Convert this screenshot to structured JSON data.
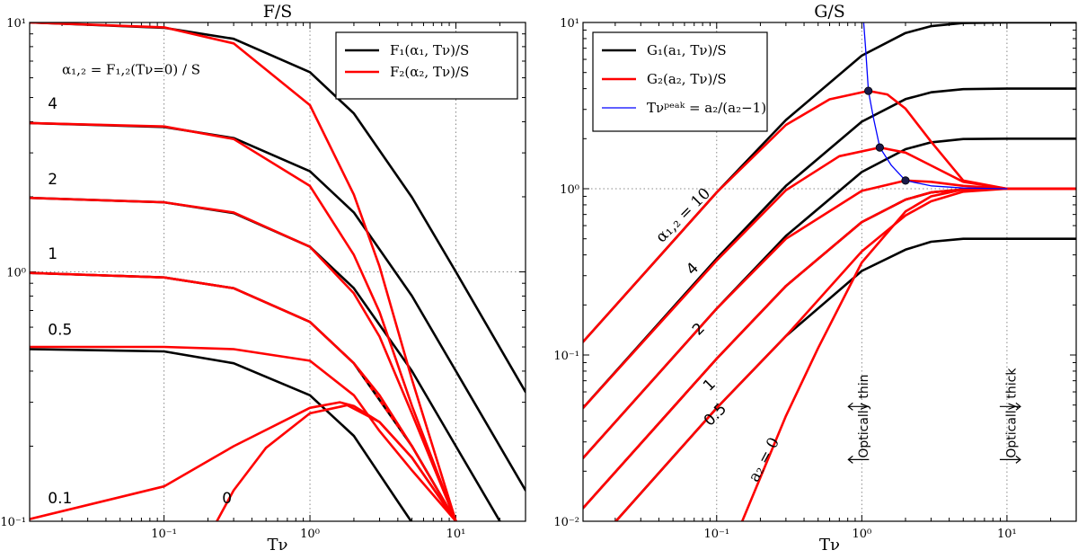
{
  "figure": {
    "x_label": "Tν"
  },
  "colors": {
    "black": "#000000",
    "red": "#ff0000",
    "blue": "#0000ff",
    "grid": "#888888",
    "marker": "#1a1a4a"
  },
  "chart_data": [
    {
      "type": "line",
      "title": "F/S",
      "xlabel": "Tν",
      "ylabel": "",
      "xscale": "log",
      "yscale": "log",
      "xlim": [
        0.012,
        30
      ],
      "ylim": [
        0.1,
        10
      ],
      "x_ticks": [
        {
          "value": 0.1,
          "label": "10⁻¹"
        },
        {
          "value": 1,
          "label": "10⁰"
        },
        {
          "value": 10,
          "label": "10¹"
        }
      ],
      "y_ticks": [
        {
          "value": 0.1,
          "label": "10⁻¹"
        },
        {
          "value": 1,
          "label": "10⁰"
        },
        {
          "value": 10,
          "label": "10¹"
        }
      ],
      "grid_lines": {
        "x": [
          0.1,
          1,
          10
        ],
        "y": [
          1
        ]
      },
      "legend": {
        "position": "top-right",
        "entries": [
          {
            "label": "F₁(α₁, Tν)/S",
            "color": "#000000"
          },
          {
            "label": "F₂(α₂, Tν)/S",
            "color": "#ff0000"
          }
        ]
      },
      "annotations": [
        {
          "text": "α₁,₂ = F₁,₂(Tν=0) / S",
          "x": 0.02,
          "y": 6.2
        },
        {
          "text": "4",
          "x": 0.016,
          "y": 4.5
        },
        {
          "text": "2",
          "x": 0.016,
          "y": 2.25
        },
        {
          "text": "1",
          "x": 0.016,
          "y": 1.13
        },
        {
          "text": "0.5",
          "x": 0.016,
          "y": 0.56
        },
        {
          "text": "0.1",
          "x": 0.016,
          "y": 0.118
        },
        {
          "text": "0",
          "x": 0.25,
          "y": 0.118
        }
      ],
      "series": [
        {
          "name": "F1 alpha1=10",
          "color": "#000000",
          "x": [
            0.012,
            0.1,
            0.3,
            1,
            2,
            5,
            10,
            30
          ],
          "y": [
            10,
            9.52,
            8.6,
            6.32,
            4.32,
            1.99,
            1.0,
            0.33
          ]
        },
        {
          "name": "F1 alpha1=4",
          "color": "#000000",
          "x": [
            0.012,
            0.1,
            0.3,
            1,
            2,
            5,
            10,
            30
          ],
          "y": [
            3.95,
            3.81,
            3.44,
            2.53,
            1.73,
            0.8,
            0.4,
            0.133
          ]
        },
        {
          "name": "F1 alpha1=2",
          "color": "#000000",
          "x": [
            0.012,
            0.1,
            0.3,
            1,
            2,
            5,
            10,
            26
          ],
          "y": [
            1.98,
            1.9,
            1.72,
            1.26,
            0.86,
            0.4,
            0.2,
            0.077
          ]
        },
        {
          "name": "F1 alpha1=1",
          "color": "#000000",
          "dashed": true,
          "x": [
            0.012,
            0.1,
            0.3,
            1,
            2,
            5,
            10
          ],
          "y": [
            0.99,
            0.95,
            0.86,
            0.63,
            0.43,
            0.2,
            0.1
          ]
        },
        {
          "name": "F1 alpha1=0.5",
          "color": "#000000",
          "x": [
            0.012,
            0.1,
            0.3,
            1,
            2,
            4,
            5.3
          ],
          "y": [
            0.49,
            0.48,
            0.43,
            0.32,
            0.22,
            0.12,
            0.094
          ]
        },
        {
          "name": "F2 alpha2=10",
          "color": "#ff0000",
          "x": [
            0.012,
            0.1,
            0.3,
            1,
            2,
            3,
            5,
            10
          ],
          "y": [
            10,
            9.56,
            8.24,
            4.66,
            2.04,
            1.05,
            0.37,
            0.1
          ]
        },
        {
          "name": "F2 alpha2=4",
          "color": "#ff0000",
          "x": [
            0.012,
            0.1,
            0.3,
            1,
            2,
            3,
            5,
            10
          ],
          "y": [
            3.95,
            3.83,
            3.41,
            2.21,
            1.17,
            0.69,
            0.29,
            0.1
          ]
        },
        {
          "name": "F2 alpha2=2",
          "color": "#ff0000",
          "x": [
            0.012,
            0.1,
            0.3,
            1,
            2,
            3,
            5,
            10
          ],
          "y": [
            1.98,
            1.9,
            1.73,
            1.26,
            0.82,
            0.55,
            0.27,
            0.1
          ]
        },
        {
          "name": "F2 alpha2=1",
          "color": "#ff0000",
          "x": [
            0.012,
            0.1,
            0.3,
            1,
            2,
            3,
            5,
            10
          ],
          "y": [
            0.99,
            0.95,
            0.86,
            0.63,
            0.43,
            0.32,
            0.2,
            0.1
          ]
        },
        {
          "name": "F2 alpha2=0.5",
          "color": "#ff0000",
          "x": [
            0.012,
            0.1,
            0.3,
            1,
            2,
            3,
            5,
            10
          ],
          "y": [
            0.5,
            0.5,
            0.49,
            0.44,
            0.32,
            0.23,
            0.16,
            0.1
          ]
        },
        {
          "name": "F2 alpha2=0.1",
          "color": "#ff0000",
          "x": [
            0.012,
            0.1,
            0.3,
            1,
            1.6,
            2,
            3,
            5,
            10
          ],
          "y": [
            0.102,
            0.138,
            0.2,
            0.285,
            0.3,
            0.29,
            0.25,
            0.18,
            0.1
          ]
        },
        {
          "name": "F2 alpha2=0",
          "color": "#ff0000",
          "x": [
            0.23,
            0.3,
            0.5,
            1,
            1.8,
            3,
            5,
            10
          ],
          "y": [
            0.1,
            0.133,
            0.197,
            0.271,
            0.292,
            0.25,
            0.18,
            0.1
          ]
        }
      ]
    },
    {
      "type": "line",
      "title": "G/S",
      "xlabel": "Tν",
      "ylabel": "",
      "xscale": "log",
      "yscale": "log",
      "xlim": [
        0.012,
        30
      ],
      "ylim": [
        0.01,
        10
      ],
      "x_ticks": [
        {
          "value": 0.1,
          "label": "10⁻¹"
        },
        {
          "value": 1,
          "label": "10⁰"
        },
        {
          "value": 10,
          "label": "10¹"
        }
      ],
      "y_ticks": [
        {
          "value": 0.01,
          "label": "10⁻²"
        },
        {
          "value": 0.1,
          "label": "10⁻¹"
        },
        {
          "value": 1,
          "label": "10⁰"
        },
        {
          "value": 10,
          "label": "10¹"
        }
      ],
      "grid_lines": {
        "x": [
          0.1,
          1,
          10
        ],
        "y": [
          1
        ]
      },
      "legend": {
        "position": "top-left",
        "entries": [
          {
            "label": "G₁(a₁, Tν)/S",
            "color": "#000000"
          },
          {
            "label": "G₂(a₂, Tν)/S",
            "color": "#ff0000"
          },
          {
            "label": "Tνᵖᵉᵃᵏ = a₂/(a₂−1)",
            "color": "#0000ff"
          }
        ]
      },
      "annotations": [
        {
          "text": "α₁,₂ = 10",
          "x": 0.042,
          "y": 0.47,
          "rotate": -45
        },
        {
          "text": "4",
          "x": 0.068,
          "y": 0.3,
          "rotate": -45
        },
        {
          "text": "2",
          "x": 0.075,
          "y": 0.13,
          "rotate": -45
        },
        {
          "text": "1",
          "x": 0.089,
          "y": 0.06,
          "rotate": -45
        },
        {
          "text": "0.5",
          "x": 0.09,
          "y": 0.037,
          "rotate": -45
        },
        {
          "text": "a₂ = 0",
          "x": 0.19,
          "y": 0.017,
          "rotate": -62
        },
        {
          "text": "Optically thin",
          "x": 1.1,
          "y": 0.024,
          "rotate": -90
        },
        {
          "text": "Optically thick",
          "x": 11.5,
          "y": 0.024,
          "rotate": -90
        }
      ],
      "series": [
        {
          "name": "G1 a1=10",
          "color": "#000000",
          "x": [
            0.012,
            0.1,
            0.3,
            1,
            2,
            3,
            5,
            10,
            30
          ],
          "y": [
            0.12,
            0.95,
            2.59,
            6.32,
            8.65,
            9.5,
            9.93,
            10,
            10
          ]
        },
        {
          "name": "G1 a1=4",
          "color": "#000000",
          "x": [
            0.012,
            0.1,
            0.3,
            1,
            2,
            3,
            5,
            10,
            30
          ],
          "y": [
            0.048,
            0.38,
            1.04,
            2.53,
            3.46,
            3.8,
            3.97,
            4,
            4
          ]
        },
        {
          "name": "G1 a1=2",
          "color": "#000000",
          "x": [
            0.012,
            0.1,
            0.3,
            1,
            2,
            3,
            5,
            10,
            30
          ],
          "y": [
            0.024,
            0.19,
            0.52,
            1.26,
            1.73,
            1.9,
            1.99,
            2,
            2
          ]
        },
        {
          "name": "G1 a1=1",
          "color": "#000000",
          "dashed": true,
          "x": [
            0.012,
            0.1,
            0.3,
            1,
            2,
            3,
            5,
            10,
            30
          ],
          "y": [
            0.012,
            0.095,
            0.26,
            0.63,
            0.86,
            0.95,
            0.99,
            1,
            1
          ]
        },
        {
          "name": "G1 a1=0.5",
          "color": "#000000",
          "x": [
            0.012,
            0.1,
            0.3,
            1,
            2,
            3,
            5,
            10,
            30
          ],
          "y": [
            0.006,
            0.048,
            0.13,
            0.32,
            0.43,
            0.48,
            0.5,
            0.5,
            0.5
          ]
        },
        {
          "name": "G2 a2=10",
          "color": "#ff0000",
          "x": [
            0.012,
            0.1,
            0.3,
            0.6,
            1.11,
            1.5,
            2,
            3,
            5,
            10,
            30
          ],
          "y": [
            0.12,
            0.95,
            2.42,
            3.45,
            3.88,
            3.69,
            3.03,
            1.92,
            1.12,
            1.0,
            1.0
          ]
        },
        {
          "name": "G2 a2=4",
          "color": "#ff0000",
          "x": [
            0.012,
            0.1,
            0.3,
            0.7,
            1.33,
            2,
            3,
            5,
            10,
            30
          ],
          "y": [
            0.048,
            0.37,
            0.98,
            1.57,
            1.77,
            1.65,
            1.38,
            1.1,
            1.0,
            1.0
          ]
        },
        {
          "name": "G2 a2=2",
          "color": "#ff0000",
          "x": [
            0.012,
            0.1,
            0.3,
            1,
            2,
            3,
            5,
            10,
            30
          ],
          "y": [
            0.024,
            0.19,
            0.5,
            0.97,
            1.12,
            1.1,
            1.04,
            1.0,
            1.0
          ]
        },
        {
          "name": "G2 a2=1",
          "color": "#ff0000",
          "x": [
            0.012,
            0.1,
            0.3,
            1,
            2,
            3,
            5,
            10,
            30
          ],
          "y": [
            0.012,
            0.095,
            0.26,
            0.63,
            0.86,
            0.95,
            0.99,
            1,
            1
          ]
        },
        {
          "name": "G2 a2=0.5",
          "color": "#ff0000",
          "x": [
            0.012,
            0.1,
            0.3,
            1,
            2,
            3,
            5,
            10,
            30
          ],
          "y": [
            0.006,
            0.048,
            0.13,
            0.42,
            0.69,
            0.84,
            0.96,
            1,
            1
          ]
        },
        {
          "name": "G2 a2=0",
          "color": "#ff0000",
          "x": [
            0.15,
            0.3,
            0.5,
            1,
            2,
            3,
            5,
            10,
            30
          ],
          "y": [
            0.01,
            0.043,
            0.11,
            0.36,
            0.73,
            0.9,
            0.99,
            1,
            1
          ]
        },
        {
          "name": "Tpeak",
          "color": "#0000ff",
          "thin": true,
          "x": [
            1.03,
            1.06,
            1.11,
            1.2,
            1.33,
            1.6,
            2,
            3,
            5,
            10
          ],
          "y": [
            10,
            7.2,
            3.88,
            2.7,
            1.77,
            1.38,
            1.12,
            1.04,
            1.01,
            1.0
          ]
        }
      ],
      "markers": [
        {
          "x": 1.11,
          "y": 3.88
        },
        {
          "x": 1.33,
          "y": 1.77
        },
        {
          "x": 2.0,
          "y": 1.12
        }
      ],
      "arrows": [
        {
          "x": 1.0,
          "y": 0.049,
          "direction": "left"
        },
        {
          "x": 1.0,
          "y": 0.0235,
          "direction": "left"
        },
        {
          "x": 10.0,
          "y": 0.049,
          "direction": "right"
        },
        {
          "x": 10.0,
          "y": 0.0235,
          "direction": "right"
        }
      ]
    }
  ]
}
